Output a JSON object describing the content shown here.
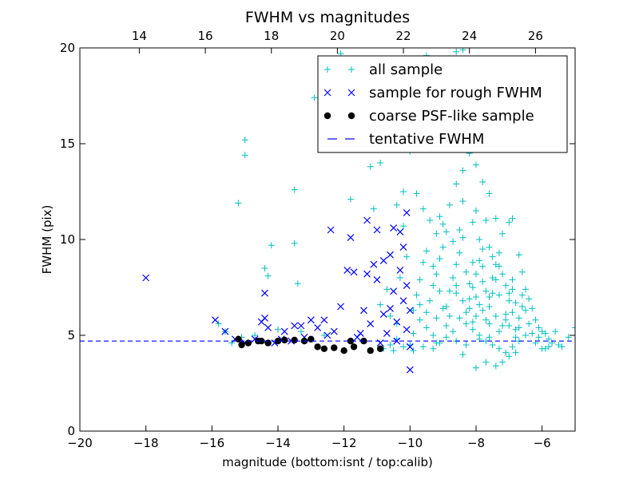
{
  "chart_data": {
    "type": "scatter",
    "title": "FWHM vs magnitudes",
    "xlabel": "magnitude (bottom:isnt / top:calib)",
    "ylabel": "FWHM (pix)",
    "xlim": [
      -20,
      -5
    ],
    "ylim": [
      0,
      20
    ],
    "x_ticks": [
      -20,
      -18,
      -16,
      -14,
      -12,
      -10,
      -8,
      -6
    ],
    "x_tick_labels": [
      "−20",
      "−18",
      "−16",
      "−14",
      "−12",
      "−10",
      "−8",
      "−6"
    ],
    "y_ticks": [
      0,
      5,
      10,
      15,
      20
    ],
    "y_tick_labels": [
      "0",
      "5",
      "10",
      "15",
      "20"
    ],
    "top_axis": {
      "xlim": [
        12.2,
        27.2
      ],
      "ticks": [
        14,
        16,
        18,
        20,
        22,
        24,
        26
      ],
      "tick_labels": [
        "14",
        "16",
        "18",
        "20",
        "22",
        "24",
        "26"
      ]
    },
    "legend": {
      "position": "upper-right",
      "entries": [
        "all sample",
        "sample for rough FWHM",
        "coarse PSF-like sample",
        "tentative FWHM"
      ]
    },
    "grid": false,
    "colors": {
      "all_sample": "#00bfbf",
      "rough": "#0000ff",
      "psf": "#000000",
      "tentative": "#0000ff"
    },
    "tentative_fwhm": 4.7,
    "series": [
      {
        "name": "all sample",
        "marker": "plus",
        "points": [
          [
            -15.0,
            15.2
          ],
          [
            -15.0,
            14.4
          ],
          [
            -15.2,
            11.9
          ],
          [
            -13.5,
            12.6
          ],
          [
            -13.5,
            9.8
          ],
          [
            -13.4,
            7.7
          ],
          [
            -14.2,
            9.7
          ],
          [
            -14.4,
            8.5
          ],
          [
            -14.3,
            8.1
          ],
          [
            -11.8,
            12.1
          ],
          [
            -11.8,
            15.7
          ],
          [
            -11.2,
            13.8
          ],
          [
            -11.1,
            11.6
          ],
          [
            -12.9,
            17.4
          ],
          [
            -12.1,
            19.7
          ],
          [
            -9.5,
            19.6
          ],
          [
            -8.6,
            19.8
          ],
          [
            -8.4,
            19.9
          ],
          [
            -13.3,
            5.2
          ],
          [
            -12.6,
            5.0
          ],
          [
            -14.7,
            5.0
          ],
          [
            -15.4,
            4.6
          ],
          [
            -15.1,
            4.9
          ],
          [
            -14.0,
            5.3
          ],
          [
            -15.6,
            5.2
          ],
          [
            -15.8,
            5.6
          ],
          [
            -10.4,
            4.8
          ],
          [
            -10.6,
            4.5
          ],
          [
            -10.2,
            4.4
          ],
          [
            -10.8,
            4.3
          ],
          [
            -10.5,
            4.2
          ],
          [
            -10.0,
            4.5
          ],
          [
            -9.9,
            4.2
          ],
          [
            -9.6,
            4.4
          ],
          [
            -9.3,
            4.3
          ],
          [
            -9.2,
            4.6
          ],
          [
            -10.4,
            5.6
          ],
          [
            -10.6,
            6.0
          ],
          [
            -10.9,
            6.6
          ],
          [
            -10.7,
            7.4
          ],
          [
            -10.3,
            8.0
          ],
          [
            -10.1,
            9.1
          ],
          [
            -10.2,
            10.7
          ],
          [
            -10.4,
            11.8
          ],
          [
            -10.2,
            12.5
          ],
          [
            -10.9,
            14.0
          ],
          [
            -10.8,
            15.2
          ],
          [
            -10.4,
            15.9
          ],
          [
            -10.2,
            16.5
          ],
          [
            -10.0,
            14.6
          ],
          [
            -9.8,
            12.4
          ],
          [
            -9.6,
            11.6
          ],
          [
            -9.4,
            11.0
          ],
          [
            -9.2,
            10.3
          ],
          [
            -9.0,
            10.8
          ],
          [
            -8.8,
            11.8
          ],
          [
            -8.6,
            12.9
          ],
          [
            -8.4,
            13.6
          ],
          [
            -8.2,
            14.5
          ],
          [
            -8.0,
            13.9
          ],
          [
            -7.8,
            13.0
          ],
          [
            -7.6,
            12.4
          ],
          [
            -7.4,
            11.1
          ],
          [
            -7.2,
            10.3
          ],
          [
            -7.0,
            10.9
          ],
          [
            -6.9,
            11.1
          ],
          [
            -6.7,
            9.2
          ],
          [
            -6.6,
            8.3
          ],
          [
            -6.5,
            7.4
          ],
          [
            -6.4,
            6.9
          ],
          [
            -6.3,
            6.4
          ],
          [
            -6.2,
            5.8
          ],
          [
            -6.1,
            5.4
          ],
          [
            -6.0,
            5.2
          ],
          [
            -5.9,
            5.1
          ],
          [
            -5.8,
            4.8
          ],
          [
            -5.7,
            4.6
          ],
          [
            -5.5,
            4.5
          ],
          [
            -5.2,
            4.9
          ],
          [
            -5.0,
            5.4
          ],
          [
            -9.9,
            6.3
          ],
          [
            -9.8,
            7.1
          ],
          [
            -9.7,
            7.9
          ],
          [
            -9.6,
            8.8
          ],
          [
            -9.5,
            9.4
          ],
          [
            -9.4,
            6.8
          ],
          [
            -9.3,
            7.6
          ],
          [
            -9.2,
            8.2
          ],
          [
            -9.1,
            9.0
          ],
          [
            -9.0,
            9.6
          ],
          [
            -8.9,
            6.5
          ],
          [
            -8.8,
            7.3
          ],
          [
            -8.7,
            8.0
          ],
          [
            -8.6,
            8.7
          ],
          [
            -8.5,
            9.3
          ],
          [
            -8.4,
            10.1
          ],
          [
            -8.3,
            6.2
          ],
          [
            -8.2,
            6.9
          ],
          [
            -8.1,
            7.5
          ],
          [
            -8.0,
            8.2
          ],
          [
            -7.9,
            8.9
          ],
          [
            -7.8,
            9.5
          ],
          [
            -7.7,
            5.8
          ],
          [
            -7.6,
            6.5
          ],
          [
            -7.5,
            7.2
          ],
          [
            -7.4,
            7.9
          ],
          [
            -7.3,
            8.6
          ],
          [
            -7.2,
            5.5
          ],
          [
            -7.1,
            6.1
          ],
          [
            -7.0,
            6.8
          ],
          [
            -6.9,
            7.4
          ],
          [
            -6.8,
            5.3
          ],
          [
            -6.7,
            5.9
          ],
          [
            -6.6,
            6.5
          ],
          [
            -8.5,
            5.9
          ],
          [
            -8.3,
            5.6
          ],
          [
            -8.1,
            5.3
          ],
          [
            -7.9,
            5.0
          ],
          [
            -7.7,
            4.7
          ],
          [
            -7.5,
            4.5
          ],
          [
            -7.3,
            4.3
          ],
          [
            -7.1,
            4.1
          ],
          [
            -6.9,
            4.4
          ],
          [
            -6.7,
            4.7
          ],
          [
            -6.5,
            5.0
          ],
          [
            -8.7,
            5.2
          ],
          [
            -8.9,
            4.9
          ],
          [
            -9.1,
            4.6
          ],
          [
            -9.3,
            5.0
          ],
          [
            -9.5,
            5.4
          ],
          [
            -9.7,
            5.8
          ],
          [
            -9.9,
            5.1
          ],
          [
            -8.0,
            3.3
          ],
          [
            -7.7,
            3.6
          ],
          [
            -7.4,
            3.4
          ],
          [
            -7.2,
            3.6
          ],
          [
            -8.4,
            4.0
          ],
          [
            -7.0,
            3.9
          ],
          [
            -6.8,
            4.1
          ],
          [
            -8.2,
            7.7
          ],
          [
            -8.0,
            7.0
          ],
          [
            -7.8,
            6.3
          ],
          [
            -7.6,
            5.6
          ],
          [
            -7.4,
            6.0
          ],
          [
            -7.6,
            7.0
          ],
          [
            -7.8,
            7.8
          ],
          [
            -8.0,
            6.0
          ],
          [
            -8.2,
            6.4
          ],
          [
            -8.4,
            6.8
          ],
          [
            -8.6,
            7.2
          ],
          [
            -8.8,
            6.0
          ],
          [
            -9.0,
            6.4
          ],
          [
            -9.2,
            5.9
          ],
          [
            -8.1,
            5.7
          ],
          [
            -7.9,
            6.6
          ],
          [
            -7.7,
            7.3
          ],
          [
            -7.5,
            8.0
          ],
          [
            -7.3,
            7.1
          ],
          [
            -7.1,
            5.8
          ],
          [
            -6.9,
            6.2
          ],
          [
            -6.7,
            5.4
          ],
          [
            -7.9,
            4.8
          ],
          [
            -7.6,
            4.9
          ],
          [
            -7.3,
            5.2
          ],
          [
            -7.0,
            5.5
          ],
          [
            -6.8,
            4.9
          ],
          [
            -8.3,
            4.5
          ],
          [
            -8.6,
            4.7
          ],
          [
            -8.9,
            5.5
          ],
          [
            -9.1,
            7.3
          ],
          [
            -9.3,
            8.6
          ],
          [
            -9.5,
            6.2
          ],
          [
            -9.7,
            6.6
          ],
          [
            -8.5,
            10.5
          ],
          [
            -8.1,
            10.9
          ],
          [
            -7.9,
            10.0
          ],
          [
            -7.6,
            9.6
          ],
          [
            -7.3,
            9.3
          ],
          [
            -8.7,
            9.9
          ],
          [
            -8.9,
            10.4
          ],
          [
            -9.1,
            11.2
          ],
          [
            -8.4,
            12.0
          ],
          [
            -8.0,
            11.5
          ],
          [
            -7.7,
            11.0
          ],
          [
            -8.6,
            7.6
          ],
          [
            -8.3,
            8.3
          ],
          [
            -7.8,
            8.6
          ],
          [
            -7.4,
            8.7
          ],
          [
            -7.1,
            7.6
          ],
          [
            -6.9,
            7.9
          ],
          [
            -6.6,
            7.1
          ],
          [
            -6.4,
            5.6
          ],
          [
            -6.2,
            4.6
          ],
          [
            -6.0,
            4.3
          ],
          [
            -5.8,
            4.4
          ],
          [
            -8.1,
            8.8
          ],
          [
            -7.5,
            9.1
          ],
          [
            -7.2,
            8.2
          ],
          [
            -7.0,
            7.2
          ],
          [
            -6.8,
            6.7
          ],
          [
            -6.5,
            6.3
          ],
          [
            -6.3,
            5.1
          ],
          [
            -6.1,
            4.9
          ],
          [
            -5.9,
            4.3
          ],
          [
            -5.6,
            5.2
          ],
          [
            -5.4,
            4.4
          ]
        ]
      },
      {
        "name": "sample for rough FWHM",
        "marker": "x",
        "points": [
          [
            -18.0,
            8.0
          ],
          [
            -15.9,
            5.8
          ],
          [
            -15.6,
            5.2
          ],
          [
            -15.3,
            4.8
          ],
          [
            -15.0,
            4.6
          ],
          [
            -14.7,
            4.8
          ],
          [
            -14.5,
            5.7
          ],
          [
            -14.4,
            5.9
          ],
          [
            -14.4,
            7.2
          ],
          [
            -14.3,
            5.4
          ],
          [
            -14.1,
            4.6
          ],
          [
            -13.9,
            4.8
          ],
          [
            -13.8,
            5.2
          ],
          [
            -13.6,
            4.7
          ],
          [
            -13.5,
            5.5
          ],
          [
            -13.3,
            5.5
          ],
          [
            -13.2,
            4.9
          ],
          [
            -13.0,
            5.8
          ],
          [
            -12.8,
            5.4
          ],
          [
            -12.6,
            5.8
          ],
          [
            -12.5,
            5.0
          ],
          [
            -12.4,
            10.5
          ],
          [
            -12.3,
            5.2
          ],
          [
            -12.1,
            6.5
          ],
          [
            -11.9,
            8.4
          ],
          [
            -11.8,
            10.1
          ],
          [
            -11.7,
            8.3
          ],
          [
            -11.6,
            4.9
          ],
          [
            -11.5,
            5.1
          ],
          [
            -11.4,
            6.3
          ],
          [
            -11.3,
            8.2
          ],
          [
            -11.3,
            11.0
          ],
          [
            -11.2,
            5.6
          ],
          [
            -11.1,
            8.7
          ],
          [
            -11.0,
            10.5
          ],
          [
            -11.0,
            7.9
          ],
          [
            -10.9,
            4.6
          ],
          [
            -10.8,
            6.1
          ],
          [
            -10.8,
            8.9
          ],
          [
            -10.7,
            5.1
          ],
          [
            -10.6,
            6.4
          ],
          [
            -10.6,
            9.2
          ],
          [
            -10.5,
            7.3
          ],
          [
            -10.5,
            10.6
          ],
          [
            -10.4,
            4.7
          ],
          [
            -10.4,
            5.7
          ],
          [
            -10.3,
            8.4
          ],
          [
            -10.3,
            10.4
          ],
          [
            -10.2,
            6.8
          ],
          [
            -10.2,
            9.6
          ],
          [
            -10.1,
            5.3
          ],
          [
            -10.1,
            7.6
          ],
          [
            -10.0,
            4.4
          ],
          [
            -10.0,
            6.3
          ],
          [
            -10.0,
            3.2
          ],
          [
            -10.1,
            11.4
          ]
        ]
      },
      {
        "name": "coarse PSF-like sample",
        "marker": "circle",
        "points": [
          [
            -15.2,
            4.8
          ],
          [
            -15.1,
            4.5
          ],
          [
            -14.9,
            4.6
          ],
          [
            -14.6,
            4.7
          ],
          [
            -14.5,
            4.7
          ],
          [
            -14.3,
            4.6
          ],
          [
            -14.0,
            4.7
          ],
          [
            -13.8,
            4.75
          ],
          [
            -13.5,
            4.75
          ],
          [
            -13.2,
            4.7
          ],
          [
            -13.0,
            4.8
          ],
          [
            -12.8,
            4.4
          ],
          [
            -12.6,
            4.3
          ],
          [
            -12.3,
            4.35
          ],
          [
            -12.0,
            4.2
          ],
          [
            -11.8,
            4.7
          ],
          [
            -11.7,
            4.4
          ],
          [
            -11.4,
            4.7
          ],
          [
            -11.2,
            4.2
          ],
          [
            -10.9,
            4.3
          ]
        ]
      }
    ]
  }
}
